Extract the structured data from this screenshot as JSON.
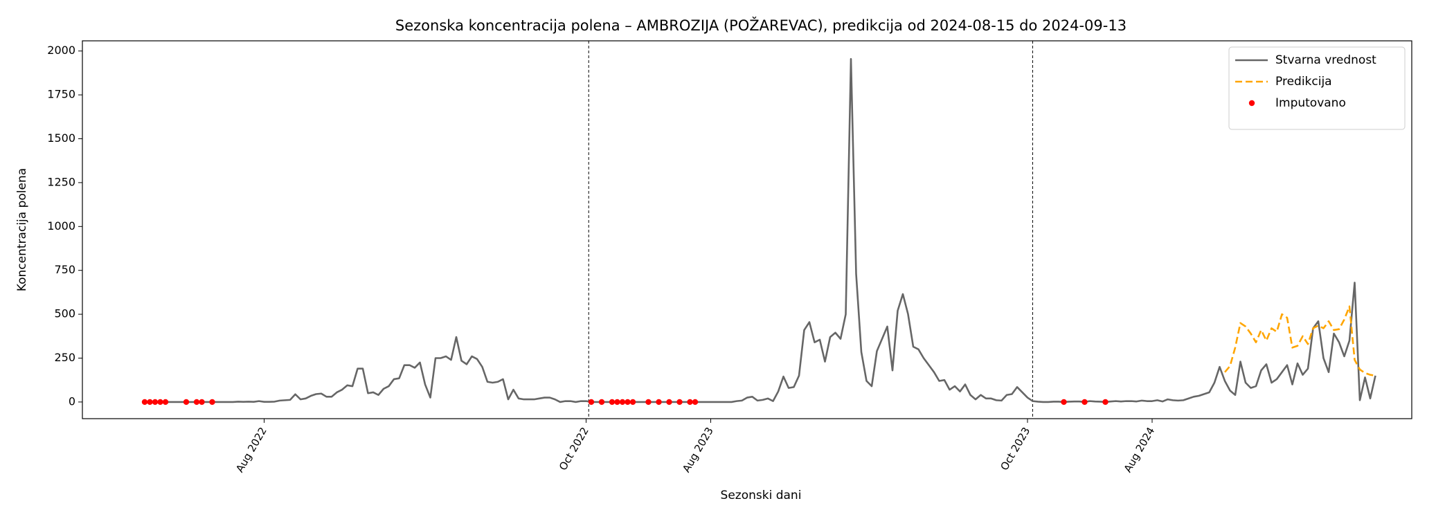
{
  "chart_data": {
    "type": "line",
    "title": "Sezonska koncentracija polena – AMBROZIJA (POŽAREVAC), predikcija od 2024-08-15 do 2024-09-13",
    "x_label": "Sezonski dani",
    "y_label": "Koncentracija polena",
    "xlim": [
      -12,
      244
    ],
    "ylim": [
      -95,
      2058
    ],
    "yticks": [
      0,
      250,
      500,
      750,
      1000,
      1250,
      1500,
      1750,
      2000
    ],
    "xticks": [
      {
        "value": 23,
        "label": "Aug 2022"
      },
      {
        "value": 85,
        "label": "Oct 2022"
      },
      {
        "value": 109,
        "label": "Aug 2023"
      },
      {
        "value": 170,
        "label": "Oct 2023"
      },
      {
        "value": 194,
        "label": "Aug 2024"
      }
    ],
    "vlines": [
      85.5,
      171
    ],
    "legend": "upper right",
    "grid": false,
    "series": [
      {
        "name": "Stvarna vrednost",
        "type": "line",
        "dashed": false,
        "color": "#666666",
        "x": [
          0,
          1,
          2,
          3,
          4,
          5,
          6,
          7,
          8,
          9,
          10,
          11,
          12,
          13,
          14,
          15,
          16,
          17,
          18,
          19,
          20,
          21,
          22,
          23,
          24,
          25,
          26,
          27,
          28,
          29,
          30,
          31,
          32,
          33,
          34,
          35,
          36,
          37,
          38,
          39,
          40,
          41,
          42,
          43,
          44,
          45,
          46,
          47,
          48,
          49,
          50,
          51,
          52,
          53,
          54,
          55,
          56,
          57,
          58,
          59,
          60,
          61,
          62,
          63,
          64,
          65,
          66,
          67,
          68,
          69,
          70,
          71,
          72,
          73,
          74,
          75,
          76,
          77,
          78,
          79,
          80,
          81,
          82,
          83,
          84,
          85,
          86,
          87,
          88,
          89,
          90,
          91,
          92,
          93,
          94,
          95,
          96,
          97,
          98,
          99,
          100,
          101,
          102,
          103,
          104,
          105,
          106,
          107,
          108,
          109,
          110,
          111,
          112,
          113,
          114,
          115,
          116,
          117,
          118,
          119,
          120,
          121,
          122,
          123,
          124,
          125,
          126,
          127,
          128,
          129,
          130,
          131,
          132,
          133,
          134,
          135,
          136,
          137,
          138,
          139,
          140,
          141,
          142,
          143,
          144,
          145,
          146,
          147,
          148,
          149,
          150,
          151,
          152,
          153,
          154,
          155,
          156,
          157,
          158,
          159,
          160,
          161,
          162,
          163,
          164,
          165,
          166,
          167,
          168,
          169,
          170,
          171,
          172,
          173,
          174,
          175,
          176,
          177,
          178,
          179,
          180,
          181,
          182,
          183,
          184,
          185,
          186,
          187,
          188,
          189,
          190,
          191,
          192,
          193,
          194,
          195,
          196,
          197,
          198,
          199,
          200,
          201,
          202,
          203,
          204,
          205,
          206,
          207,
          208,
          209,
          210,
          211,
          212,
          213,
          214,
          215,
          216,
          217,
          218,
          219,
          220,
          221,
          222,
          223,
          224,
          225,
          226,
          227,
          228,
          229,
          230,
          231,
          232,
          233,
          234,
          235,
          236,
          237
        ],
        "values": [
          0,
          0,
          0,
          0,
          0,
          0,
          0,
          0,
          0,
          0,
          0,
          0,
          0,
          0,
          0,
          0,
          0,
          0,
          2,
          1,
          2,
          1,
          5,
          1,
          1,
          2,
          8,
          10,
          12,
          44,
          15,
          20,
          35,
          45,
          48,
          30,
          30,
          55,
          70,
          95,
          90,
          190,
          190,
          50,
          55,
          40,
          75,
          90,
          130,
          135,
          210,
          210,
          195,
          225,
          100,
          25,
          250,
          250,
          260,
          240,
          370,
          235,
          215,
          260,
          245,
          200,
          115,
          110,
          115,
          130,
          15,
          70,
          20,
          15,
          15,
          15,
          20,
          25,
          25,
          15,
          0,
          5,
          5,
          0,
          5,
          5,
          0,
          0,
          0,
          0,
          0,
          0,
          0,
          0,
          0,
          0,
          0,
          0,
          0,
          0,
          0,
          0,
          0,
          0,
          0,
          0,
          0,
          0,
          0,
          0,
          0,
          0,
          0,
          0,
          5,
          8,
          25,
          30,
          8,
          12,
          20,
          5,
          60,
          145,
          80,
          85,
          150,
          410,
          455,
          340,
          355,
          230,
          370,
          395,
          360,
          500,
          1955,
          730,
          285,
          120,
          90,
          290,
          360,
          430,
          180,
          520,
          615,
          500,
          315,
          300,
          250,
          210,
          170,
          120,
          125,
          70,
          90,
          60,
          100,
          40,
          15,
          40,
          20,
          20,
          10,
          8,
          40,
          45,
          85,
          55,
          25,
          5,
          2,
          0,
          0,
          2,
          2,
          0,
          2,
          3,
          3,
          0,
          5,
          3,
          2,
          0,
          3,
          5,
          3,
          5,
          5,
          3,
          8,
          5,
          5,
          10,
          3,
          15,
          10,
          8,
          10,
          20,
          30,
          35,
          45,
          55,
          110,
          200,
          120,
          65,
          40,
          230,
          110,
          80,
          90,
          180,
          215,
          110,
          130,
          170,
          210,
          100,
          220,
          155,
          190,
          420,
          460,
          250,
          170,
          390,
          340,
          260,
          350,
          680,
          10,
          140,
          20,
          150
        ]
      },
      {
        "name": "Predikcija",
        "type": "line",
        "dashed": true,
        "color": "#ffa500",
        "x": [
          208,
          209,
          210,
          211,
          212,
          213,
          214,
          215,
          216,
          217,
          218,
          219,
          220,
          221,
          222,
          223,
          224,
          225,
          226,
          227,
          228,
          229,
          230,
          231,
          232,
          233,
          234,
          235,
          236,
          237
        ],
        "values": [
          170,
          205,
          310,
          450,
          430,
          390,
          340,
          410,
          350,
          420,
          400,
          500,
          480,
          310,
          320,
          375,
          330,
          420,
          435,
          420,
          460,
          410,
          415,
          470,
          545,
          240,
          185,
          165,
          155,
          150
        ]
      },
      {
        "name": "Imputovano",
        "type": "scatter",
        "dashed": false,
        "color": "#ff0000",
        "x": [
          0,
          1,
          2,
          3,
          4,
          8,
          10,
          11,
          13,
          86,
          88,
          90,
          91,
          92,
          93,
          94,
          97,
          99,
          101,
          103,
          105,
          106,
          177,
          181,
          185
        ],
        "values": [
          0,
          0,
          0,
          0,
          0,
          0,
          0,
          0,
          0,
          0,
          0,
          0,
          0,
          0,
          0,
          0,
          0,
          0,
          0,
          0,
          0,
          0,
          0,
          0,
          0
        ]
      }
    ]
  }
}
